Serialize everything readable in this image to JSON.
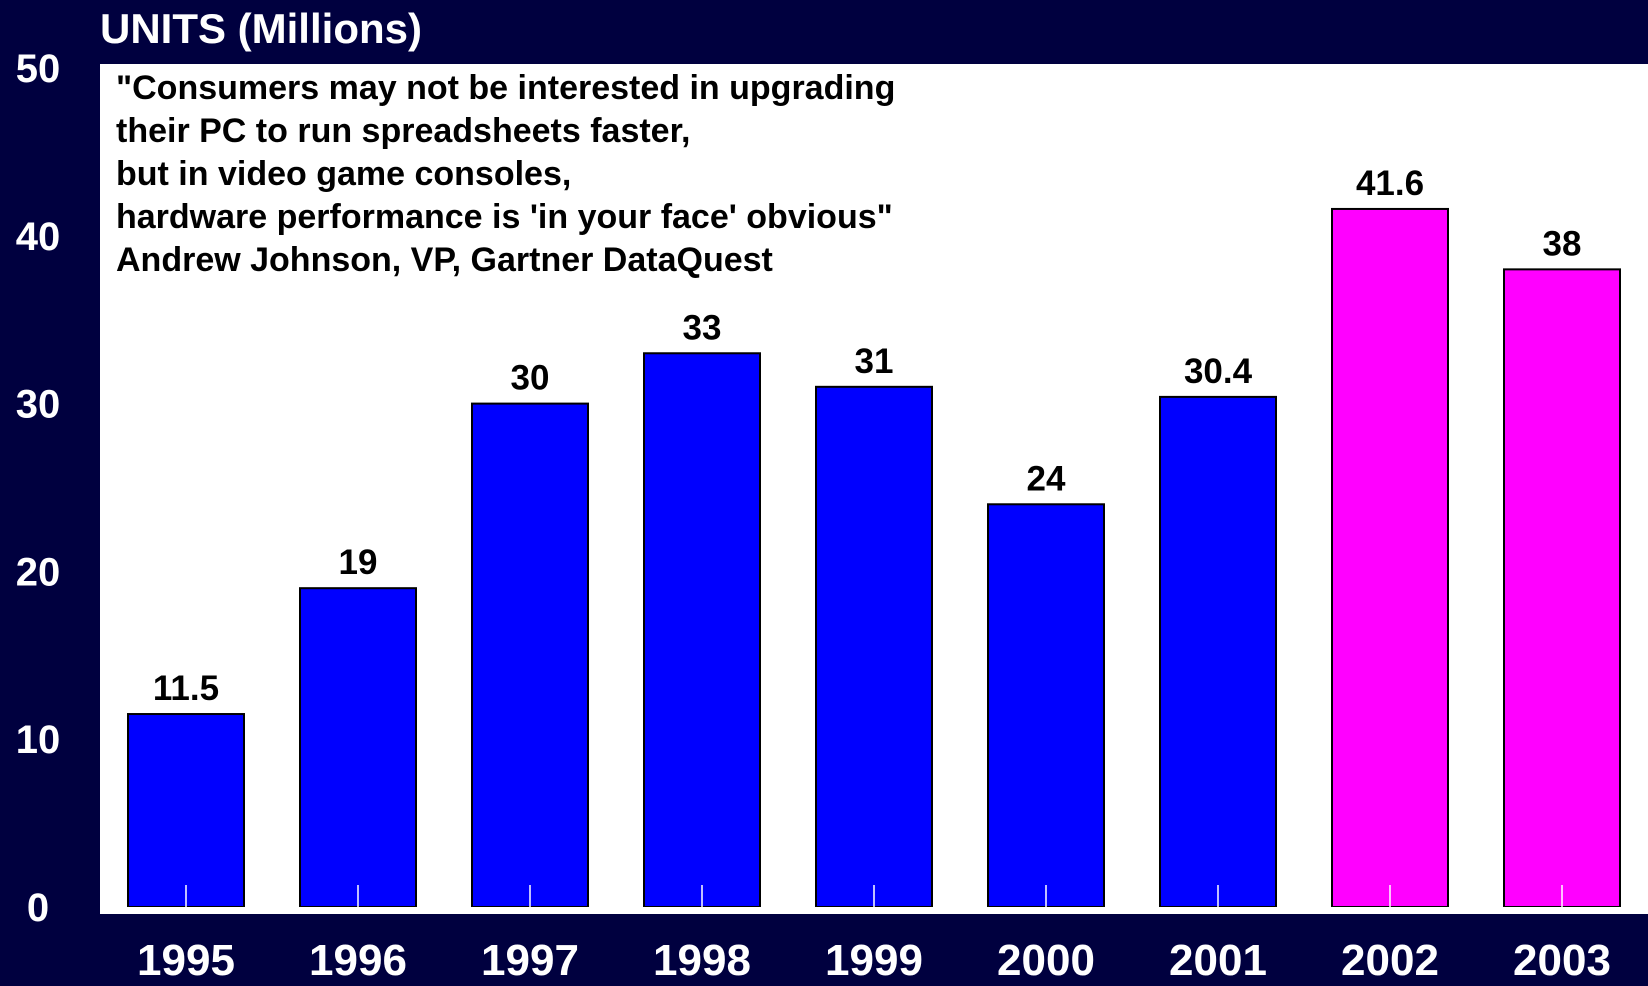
{
  "chart_data": {
    "type": "bar",
    "title": "UNITS (Millions)",
    "categories": [
      "1995",
      "1996",
      "1997",
      "1998",
      "1999",
      "2000",
      "2001",
      "2002",
      "2003"
    ],
    "values": [
      11.5,
      19,
      30,
      33,
      31,
      24,
      30.4,
      41.6,
      38
    ],
    "data_labels": [
      "11.5",
      "19",
      "30",
      "33",
      "31",
      "24",
      "30.4",
      "41.6",
      "38"
    ],
    "bar_colors": [
      "#0000ff",
      "#0000ff",
      "#0000ff",
      "#0000ff",
      "#0000ff",
      "#0000ff",
      "#0000ff",
      "#ff00ff",
      "#ff00ff"
    ],
    "ylim": [
      0,
      50
    ],
    "yticks": [
      0,
      10,
      20,
      30,
      40,
      50
    ],
    "grid": false,
    "xlabel": "",
    "ylabel": ""
  },
  "annotation": {
    "lines": [
      "\"Consumers may not be interested in upgrading",
      "their PC to run spreadsheets faster,",
      "but in video game consoles,",
      "hardware performance is 'in your face' obvious\"",
      "Andrew Johnson, VP, Gartner DataQuest"
    ]
  },
  "colors": {
    "background": "#00003f",
    "plot_area": "#ffffff",
    "historical_bar": "#0000ff",
    "forecast_bar": "#ff00ff"
  }
}
